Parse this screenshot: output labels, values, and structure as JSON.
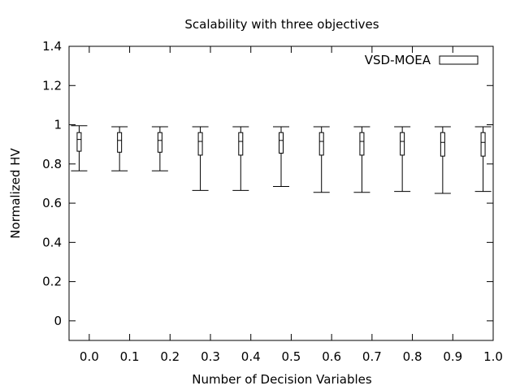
{
  "chart_data": {
    "type": "box",
    "title": "Scalability with three objectives",
    "xlabel": "Number of Decision Variables",
    "ylabel": "Normalized HV",
    "xlim": [
      -0.05,
      1.0
    ],
    "ylim": [
      -0.1,
      1.4
    ],
    "x_ticks": [
      "0.0",
      "0.1",
      "0.2",
      "0.3",
      "0.4",
      "0.5",
      "0.6",
      "0.7",
      "0.8",
      "0.9",
      "1.0"
    ],
    "x_tick_values": [
      0.0,
      0.1,
      0.2,
      0.3,
      0.4,
      0.5,
      0.6,
      0.7,
      0.8,
      0.9,
      1.0
    ],
    "y_ticks": [
      "0",
      "0.2",
      "0.4",
      "0.6",
      "0.8",
      "1",
      "1.2",
      "1.4"
    ],
    "y_tick_values": [
      0,
      0.2,
      0.4,
      0.6,
      0.8,
      1.0,
      1.2,
      1.4
    ],
    "legend_position": "top-right",
    "series": [
      {
        "name": "VSD-MOEA",
        "boxes": [
          {
            "x": -0.025,
            "min": 0.765,
            "q1": 0.865,
            "median": 0.925,
            "q3": 0.96,
            "max": 0.995
          },
          {
            "x": 0.075,
            "min": 0.765,
            "q1": 0.86,
            "median": 0.92,
            "q3": 0.96,
            "max": 0.99
          },
          {
            "x": 0.175,
            "min": 0.765,
            "q1": 0.86,
            "median": 0.92,
            "q3": 0.96,
            "max": 0.99
          },
          {
            "x": 0.275,
            "min": 0.665,
            "q1": 0.845,
            "median": 0.915,
            "q3": 0.96,
            "max": 0.99
          },
          {
            "x": 0.375,
            "min": 0.665,
            "q1": 0.845,
            "median": 0.915,
            "q3": 0.96,
            "max": 0.99
          },
          {
            "x": 0.475,
            "min": 0.685,
            "q1": 0.855,
            "median": 0.92,
            "q3": 0.96,
            "max": 0.99
          },
          {
            "x": 0.575,
            "min": 0.655,
            "q1": 0.845,
            "median": 0.915,
            "q3": 0.96,
            "max": 0.99
          },
          {
            "x": 0.675,
            "min": 0.655,
            "q1": 0.845,
            "median": 0.915,
            "q3": 0.96,
            "max": 0.99
          },
          {
            "x": 0.775,
            "min": 0.66,
            "q1": 0.845,
            "median": 0.915,
            "q3": 0.96,
            "max": 0.99
          },
          {
            "x": 0.875,
            "min": 0.65,
            "q1": 0.84,
            "median": 0.91,
            "q3": 0.96,
            "max": 0.99
          },
          {
            "x": 0.975,
            "min": 0.66,
            "q1": 0.84,
            "median": 0.91,
            "q3": 0.96,
            "max": 0.99
          }
        ]
      }
    ]
  }
}
